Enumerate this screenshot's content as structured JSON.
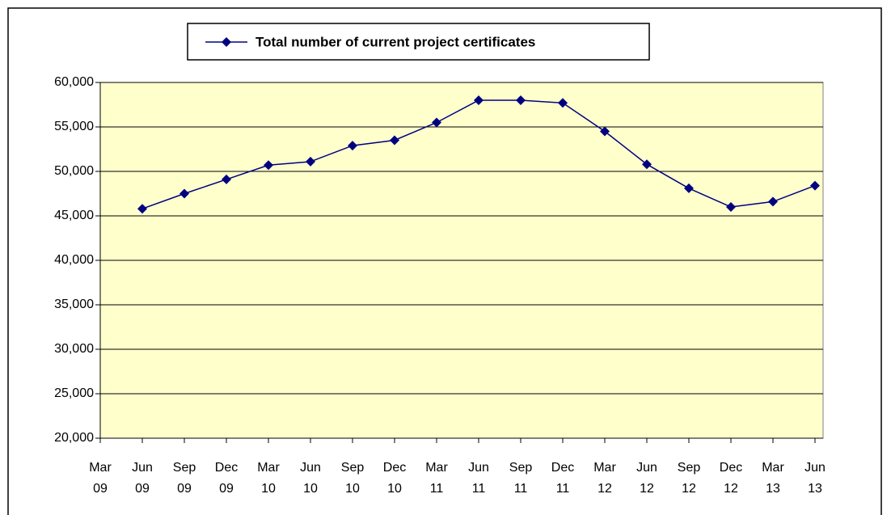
{
  "chart_data": {
    "type": "line",
    "categories": [
      "Mar 09",
      "Jun 09",
      "Sep 09",
      "Dec 09",
      "Mar 10",
      "Jun 10",
      "Sep 10",
      "Dec 10",
      "Mar 11",
      "Jun 11",
      "Sep 11",
      "Dec 11",
      "Mar 12",
      "Jun 12",
      "Sep 12",
      "Dec 12",
      "Mar 13",
      "Jun 13"
    ],
    "series": [
      {
        "name": "Total number of current project certificates",
        "color": "#000080",
        "values": [
          null,
          45800,
          47500,
          49100,
          50700,
          51100,
          52900,
          53500,
          55500,
          58000,
          58000,
          57700,
          54500,
          50800,
          48100,
          46000,
          46600,
          48400
        ]
      }
    ],
    "ylim": [
      20000,
      60000
    ],
    "yticks": [
      {
        "value": 20000,
        "label": "20,000"
      },
      {
        "value": 25000,
        "label": "25,000"
      },
      {
        "value": 30000,
        "label": "30,000"
      },
      {
        "value": 35000,
        "label": "35,000"
      },
      {
        "value": 40000,
        "label": "40,000"
      },
      {
        "value": 45000,
        "label": "45,000"
      },
      {
        "value": 50000,
        "label": "50,000"
      },
      {
        "value": 55000,
        "label": "55,000"
      },
      {
        "value": 60000,
        "label": "60,000"
      }
    ],
    "grid": true,
    "legend": "top",
    "plot_background": "#ffffcc"
  }
}
